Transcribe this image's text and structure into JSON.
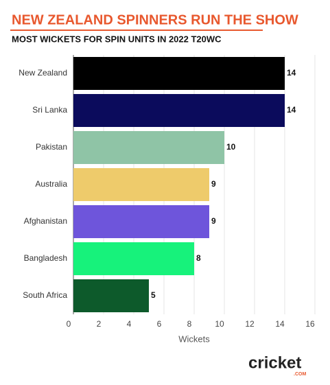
{
  "chart_data": {
    "type": "barh",
    "title": "NEW ZEALAND SPINNERS RUN THE SHOW",
    "subtitle": "MOST WICKETS FOR SPIN UNITS IN 2022 T20WC",
    "categories": [
      "New Zealand",
      "Sri Lanka",
      "Pakistan",
      "Australia",
      "Afghanistan",
      "Bangladesh",
      "South Africa"
    ],
    "values": [
      14,
      14,
      10,
      9,
      9,
      8,
      5
    ],
    "colors": [
      "#000000",
      "#0b0b5c",
      "#8fc4a6",
      "#eecb6b",
      "#6e55db",
      "#17f27b",
      "#0d5a2b"
    ],
    "xlabel": "Wickets",
    "xlim": [
      0,
      16
    ],
    "xticks": [
      0,
      2,
      4,
      6,
      8,
      10,
      12,
      14,
      16
    ],
    "grid": true,
    "logo": "cricket",
    "logo_sub": ".COM"
  }
}
